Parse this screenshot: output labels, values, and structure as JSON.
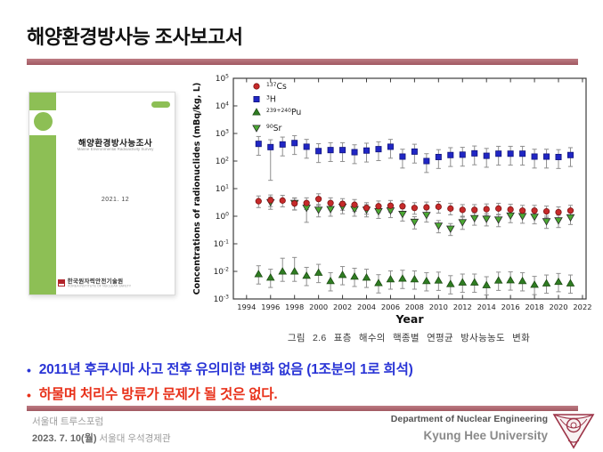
{
  "slide": {
    "title": "해양환경방사능 조사보고서",
    "accent_color": "#ad636c",
    "bullets": [
      {
        "text": "2011년 후쿠시마 사고 전후 유의미한 변화 없음 (1조분의 1로 희석)",
        "color": "#2a35d6"
      },
      {
        "text": "하물며 처리수 방류가 문제가 될 것은 없다.",
        "color": "#e8311a"
      }
    ],
    "footer": {
      "left_line1": "서울대 트루스포럼",
      "left_line2_bold": "2023. 7. 10(월)",
      "left_line2_rest": " 서울대 우석경제관",
      "right_line1": "Department of Nuclear Engineering",
      "right_line2": "Kyung Hee University"
    }
  },
  "report_cover": {
    "title": "해양환경방사능조사",
    "subtitle": "Marine Environmental Radioactivity Survey",
    "date": "2021. 12",
    "publisher": "한국원자력안전기술원",
    "publisher_sub": "KOREA INSTITUTE OF NUCLEAR SAFETY",
    "accent_green": "#8dbf55"
  },
  "chart": {
    "caption": "그림 2.6 표층 해수의 핵종별 연평균 방사능농도 변화"
  },
  "chart_data": {
    "type": "scatter",
    "title": "",
    "xlabel": "Year",
    "ylabel": "Concentrations of radionuclides (mBq/kg, L)",
    "x_ticks": [
      1994,
      1996,
      1998,
      2000,
      2002,
      2004,
      2006,
      2008,
      2010,
      2012,
      2014,
      2016,
      2018,
      2020,
      2022
    ],
    "xlim": [
      1992.9,
      2022.3
    ],
    "y_log_range": [
      -3,
      5
    ],
    "grid": false,
    "legend_position": "top-left",
    "error_bar_color": "#8f8f8f",
    "years": [
      1995,
      1996,
      1997,
      1998,
      1999,
      2000,
      2001,
      2002,
      2003,
      2004,
      2005,
      2006,
      2007,
      2008,
      2009,
      2010,
      2011,
      2012,
      2013,
      2014,
      2015,
      2016,
      2017,
      2018,
      2019,
      2020,
      2021
    ],
    "series": [
      {
        "name": "Cs-137",
        "sup": "137",
        "base": "Cs",
        "marker": "circle",
        "color": "#c62a2a",
        "edge": "#7e1414",
        "err_lo_factor": 1.7,
        "err_hi_factor": 1.55,
        "err_overrides": [],
        "values": [
          3.5,
          3.8,
          3.7,
          2.9,
          3.0,
          4.2,
          3.0,
          2.8,
          2.6,
          2.0,
          2.3,
          2.4,
          2.3,
          2.0,
          2.1,
          2.2,
          1.9,
          1.7,
          1.7,
          1.8,
          1.9,
          1.75,
          1.6,
          1.6,
          1.5,
          1.4,
          1.6
        ]
      },
      {
        "name": "H-3",
        "sup": "3",
        "base": "H",
        "marker": "square",
        "color": "#2026c4",
        "edge": "#11147e",
        "err_lo_factor": 2.6,
        "err_hi_factor": 1.85,
        "err_overrides": [
          {
            "year": 1996,
            "lo": 20
          }
        ],
        "values": [
          420,
          320,
          400,
          450,
          330,
          230,
          250,
          250,
          210,
          240,
          270,
          330,
          145,
          220,
          100,
          140,
          165,
          170,
          190,
          155,
          185,
          185,
          185,
          145,
          145,
          140,
          165
        ]
      },
      {
        "name": "Pu-239+240",
        "sup": "239+240",
        "base": "Pu",
        "marker": "triangle-up",
        "color": "#2f7d22",
        "edge": "#1c4c12",
        "err_lo_factor": 2.3,
        "err_hi_factor": 2.0,
        "err_overrides": [
          {
            "year": 1997,
            "hi": 0.03
          },
          {
            "year": 1998,
            "hi": 0.032
          }
        ],
        "values": [
          0.008,
          0.006,
          0.01,
          0.01,
          0.007,
          0.009,
          0.0045,
          0.0075,
          0.0065,
          0.006,
          0.0038,
          0.0052,
          0.0055,
          0.0052,
          0.0045,
          0.0047,
          0.0035,
          0.004,
          0.004,
          0.0032,
          0.0047,
          0.0048,
          0.0045,
          0.0033,
          0.0037,
          0.0042,
          0.0037
        ]
      },
      {
        "name": "Sr-90",
        "sup": "90",
        "base": "Sr",
        "marker": "triangle-down",
        "color": "#4aa832",
        "edge": "#2a2a2a",
        "err_lo_factor": 1.8,
        "err_hi_factor": 1.55,
        "err_overrides": [
          {
            "year": 1999,
            "lo": 0.6
          },
          {
            "year": 2011,
            "lo": 0.2
          }
        ],
        "values": [
          null,
          3.2,
          null,
          3.0,
          2.0,
          1.7,
          1.8,
          2.2,
          1.8,
          1.7,
          1.5,
          1.6,
          1.2,
          0.62,
          1.1,
          0.45,
          0.35,
          0.6,
          0.85,
          0.8,
          0.75,
          1.05,
          1.0,
          0.95,
          0.65,
          0.7,
          0.9
        ]
      }
    ]
  }
}
